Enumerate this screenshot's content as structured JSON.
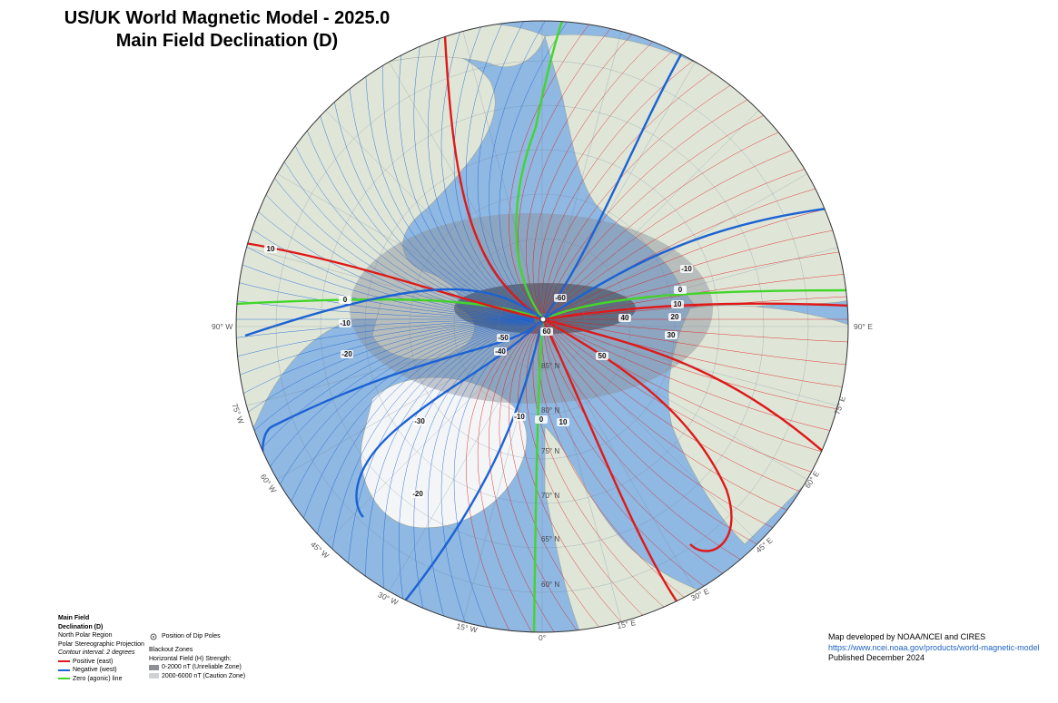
{
  "title": {
    "line1": "US/UK World Magnetic Model - 2025.0",
    "line2": "Main Field Declination (D)"
  },
  "colors": {
    "positive": "#e01818",
    "negative": "#1b62d4",
    "zero": "#43d62a",
    "ocean": "#8fb8e2",
    "land": "#dfe6d8",
    "blackout_dark": "#3a3f4d",
    "blackout_light": "#8a8f9a"
  },
  "longitude_labels": {
    "w90": "90° W",
    "e90": "90° E",
    "w75": "75° W",
    "w60": "60° W",
    "w45": "45° W",
    "w30": "30° W",
    "w15": "15° W",
    "zero": "0°",
    "e15": "15° E",
    "e30": "30° E",
    "e45": "45° E",
    "e60": "60° E",
    "e75": "75° E"
  },
  "latitude_labels": {
    "n85": "85° N",
    "n80": "80° N",
    "n75": "75° N",
    "n70": "70° N",
    "n65": "65° N",
    "n60": "60° N"
  },
  "contour_labels": {
    "pos10_upper_left": "10",
    "zero_left": "0",
    "neg10_left": "-10",
    "neg20_left": "-20",
    "neg30": "-30",
    "neg20_lower": "-20",
    "neg10_center": "-10",
    "zero_center": "0",
    "pos10_center": "10",
    "neg40": "-40",
    "neg50": "-50",
    "neg60": "-60",
    "pos60": "60",
    "pos50": "50",
    "pos40": "40",
    "pos30": "30",
    "pos20": "20",
    "pos10_right": "10",
    "zero_right": "0",
    "neg10_right": "-10"
  },
  "legend": {
    "heading1": "Main Field",
    "heading2": "Declination (D)",
    "region": "North Polar Region",
    "projection": "Polar Stereographic Projection",
    "interval": "Contour interval: 2 degrees",
    "positive": "Positive (east)",
    "negative": "Negative (west)",
    "zero": "Zero (agonic) line",
    "dip_poles": "Position of Dip Poles",
    "blackout_title": "Blackout Zones",
    "blackout_sub": "Horizontal Field (H) Strength:",
    "zone1": "0-2000 nT (Unreliable Zone)",
    "zone2": "2000-6000 nT (Caution Zone)"
  },
  "credits": {
    "line1": "Map developed by NOAA/NCEI and CIRES",
    "link": "https://www.ncei.noaa.gov/products/world-magnetic-model",
    "line3": "Published December 2024"
  }
}
